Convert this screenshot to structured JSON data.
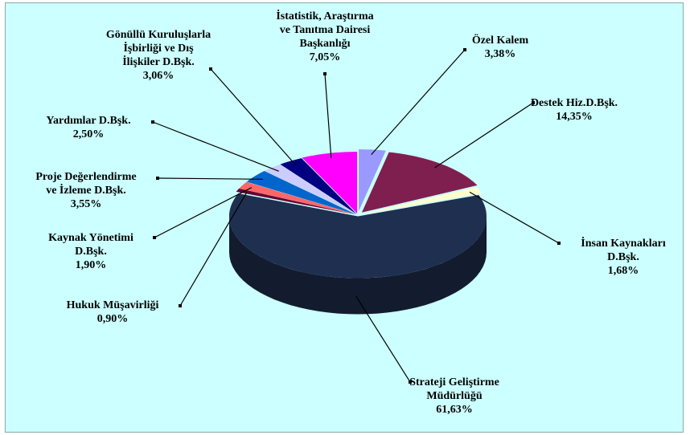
{
  "chart_data": {
    "type": "pie3d",
    "categories": [
      "Özel Kalem",
      "Destek Hiz.D.Bşk.",
      "İnsan Kaynakları\nD.Bşk.",
      "Strateji Geliştirme\nMüdürlüğü",
      "Hukuk Müşavirliği",
      "Kaynak Yönetimi\nD.Bşk.",
      "Proje Değerlendirme\nve İzleme D.Bşk.",
      "Yardımlar D.Bşk.",
      "Gönüllü Kuruluşlarla\nİşbirliği ve Dış\nİlişkiler D.Bşk.",
      "İstatistik, Araştırma\nve Tanıtma Dairesi\nBaşkanlığı"
    ],
    "values": [
      3.38,
      14.35,
      1.68,
      61.63,
      0.9,
      1.9,
      3.55,
      2.5,
      3.06,
      7.05
    ],
    "value_labels": [
      "3,38%",
      "14,35%",
      "1,68%",
      "61,63%",
      "0,90%",
      "1,90%",
      "3,55%",
      "2,50%",
      "3,06%",
      "7,05%"
    ],
    "colors": [
      "#9999ff",
      "#7f1f4f",
      "#ffffcc",
      "#1f2f4f",
      "#660033",
      "#ff6666",
      "#0066cc",
      "#ccccff",
      "#000080",
      "#ff00ff"
    ]
  }
}
